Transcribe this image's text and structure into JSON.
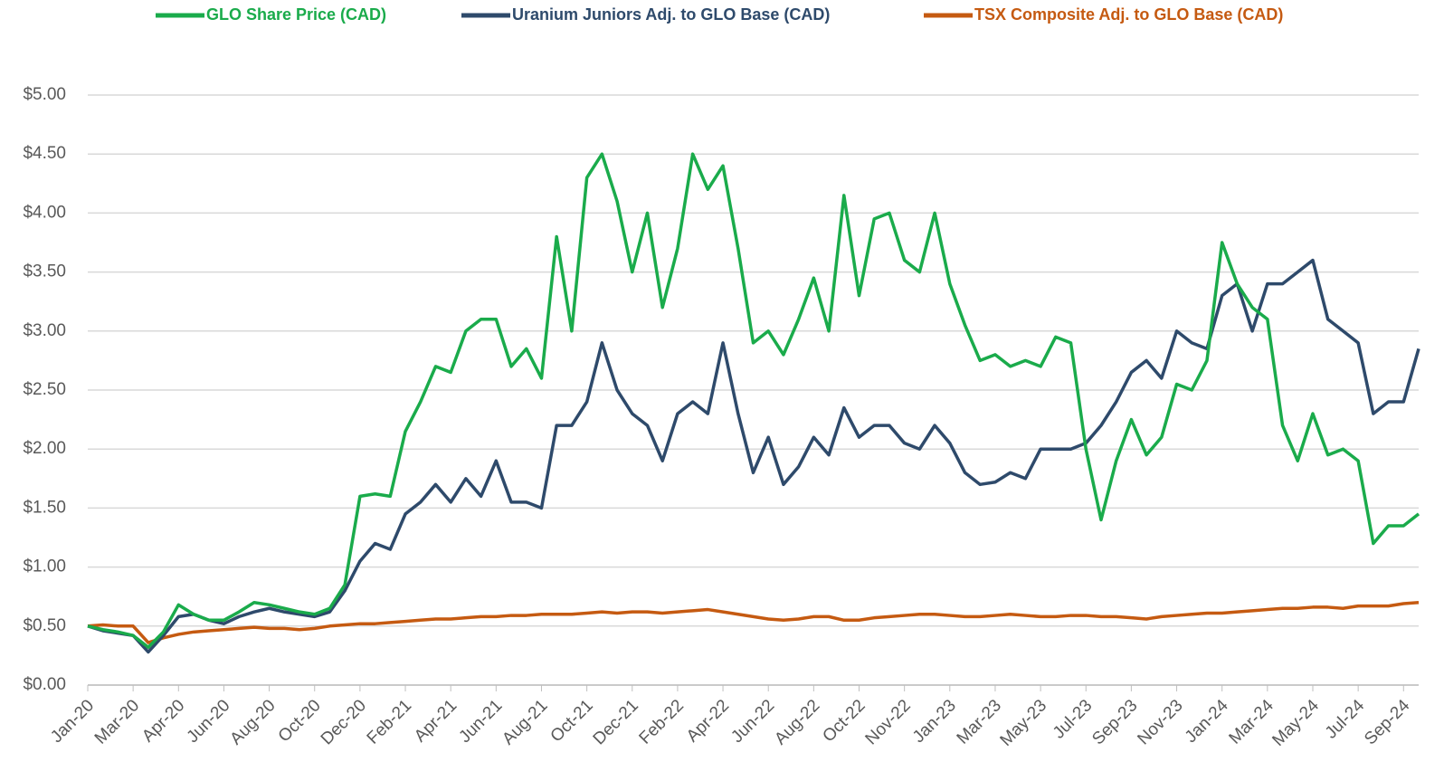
{
  "chart_data": {
    "type": "line",
    "categories": [
      "Jan-20",
      null,
      null,
      "Mar-20",
      null,
      null,
      "Apr-20",
      null,
      null,
      "Jun-20",
      null,
      null,
      "Aug-20",
      null,
      null,
      "Oct-20",
      null,
      null,
      "Dec-20",
      null,
      null,
      "Feb-21",
      null,
      null,
      "Apr-21",
      null,
      null,
      "Jun-21",
      null,
      null,
      "Aug-21",
      null,
      null,
      "Oct-21",
      null,
      null,
      "Dec-21",
      null,
      null,
      "Feb-22",
      null,
      null,
      "Apr-22",
      null,
      null,
      "Jun-22",
      null,
      null,
      "Aug-22",
      null,
      null,
      "Oct-22",
      null,
      null,
      "Nov-22",
      null,
      null,
      "Jan-23",
      null,
      null,
      "Mar-23",
      null,
      null,
      "May-23",
      null,
      null,
      "Jul-23",
      null,
      null,
      "Sep-23",
      null,
      null,
      "Nov-23",
      null,
      null,
      "Jan-24",
      null,
      null,
      "Mar-24",
      null,
      null,
      "May-24",
      null,
      null,
      "Jul-24",
      null,
      null,
      "Sep-24",
      null
    ],
    "series": [
      {
        "name": "GLO Share Price (CAD)",
        "color": "#1aab4b",
        "values": [
          0.5,
          0.47,
          0.45,
          0.42,
          0.32,
          0.45,
          0.68,
          0.6,
          0.55,
          0.55,
          0.62,
          0.7,
          0.68,
          0.65,
          0.62,
          0.6,
          0.65,
          0.85,
          1.6,
          1.62,
          1.6,
          2.15,
          2.4,
          2.7,
          2.65,
          3.0,
          3.1,
          3.1,
          2.7,
          2.85,
          2.6,
          3.8,
          3.0,
          4.3,
          4.5,
          4.1,
          3.5,
          4.0,
          3.2,
          3.7,
          4.5,
          4.2,
          4.4,
          3.7,
          2.9,
          3.0,
          2.8,
          3.1,
          3.45,
          3.0,
          4.15,
          3.3,
          3.95,
          4.0,
          3.6,
          3.5,
          4.0,
          3.4,
          3.05,
          2.75,
          2.8,
          2.7,
          2.75,
          2.7,
          2.95,
          2.9,
          2.0,
          1.4,
          1.9,
          2.25,
          1.95,
          2.1,
          2.55,
          2.5,
          2.75,
          3.75,
          3.4,
          3.2,
          3.1,
          2.2,
          1.9,
          2.3,
          1.95,
          2.0,
          1.9,
          1.2,
          1.35,
          1.35,
          1.45
        ]
      },
      {
        "name": "Uranium Juniors Adj. to GLO Base (CAD)",
        "color": "#2e4a6b",
        "values": [
          0.5,
          0.46,
          0.44,
          0.42,
          0.28,
          0.42,
          0.58,
          0.6,
          0.55,
          0.52,
          0.58,
          0.62,
          0.65,
          0.62,
          0.6,
          0.58,
          0.62,
          0.8,
          1.05,
          1.2,
          1.15,
          1.45,
          1.55,
          1.7,
          1.55,
          1.75,
          1.6,
          1.9,
          1.55,
          1.55,
          1.5,
          2.2,
          2.2,
          2.4,
          2.9,
          2.5,
          2.3,
          2.2,
          1.9,
          2.3,
          2.4,
          2.3,
          2.9,
          2.3,
          1.8,
          2.1,
          1.7,
          1.85,
          2.1,
          1.95,
          2.35,
          2.1,
          2.2,
          2.2,
          2.05,
          2.0,
          2.2,
          2.05,
          1.8,
          1.7,
          1.72,
          1.8,
          1.75,
          2.0,
          2.0,
          2.0,
          2.05,
          2.2,
          2.4,
          2.65,
          2.75,
          2.6,
          3.0,
          2.9,
          2.85,
          3.3,
          3.4,
          3.0,
          3.4,
          3.4,
          3.5,
          3.6,
          3.1,
          3.0,
          2.9,
          2.3,
          2.4,
          2.4,
          2.85
        ]
      },
      {
        "name": "TSX Composite Adj. to GLO Base (CAD)",
        "color": "#c55a11",
        "values": [
          0.5,
          0.51,
          0.5,
          0.5,
          0.36,
          0.4,
          0.43,
          0.45,
          0.46,
          0.47,
          0.48,
          0.49,
          0.48,
          0.48,
          0.47,
          0.48,
          0.5,
          0.51,
          0.52,
          0.52,
          0.53,
          0.54,
          0.55,
          0.56,
          0.56,
          0.57,
          0.58,
          0.58,
          0.59,
          0.59,
          0.6,
          0.6,
          0.6,
          0.61,
          0.62,
          0.61,
          0.62,
          0.62,
          0.61,
          0.62,
          0.63,
          0.64,
          0.62,
          0.6,
          0.58,
          0.56,
          0.55,
          0.56,
          0.58,
          0.58,
          0.55,
          0.55,
          0.57,
          0.58,
          0.59,
          0.6,
          0.6,
          0.59,
          0.58,
          0.58,
          0.59,
          0.6,
          0.59,
          0.58,
          0.58,
          0.59,
          0.59,
          0.58,
          0.58,
          0.57,
          0.56,
          0.58,
          0.59,
          0.6,
          0.61,
          0.61,
          0.62,
          0.63,
          0.64,
          0.65,
          0.65,
          0.66,
          0.66,
          0.65,
          0.67,
          0.67,
          0.67,
          0.69,
          0.7
        ]
      }
    ],
    "ylim": [
      0,
      5
    ],
    "yticks": [
      {
        "value": 0,
        "label": "$0.00"
      },
      {
        "value": 0.5,
        "label": "$0.50"
      },
      {
        "value": 1,
        "label": "$1.00"
      },
      {
        "value": 1.5,
        "label": "$1.50"
      },
      {
        "value": 2,
        "label": "$2.00"
      },
      {
        "value": 2.5,
        "label": "$2.50"
      },
      {
        "value": 3,
        "label": "$3.00"
      },
      {
        "value": 3.5,
        "label": "$3.50"
      },
      {
        "value": 4,
        "label": "$4.00"
      },
      {
        "value": 4.5,
        "label": "$4.50"
      },
      {
        "value": 5,
        "label": "$5.00"
      }
    ],
    "grid": true
  }
}
